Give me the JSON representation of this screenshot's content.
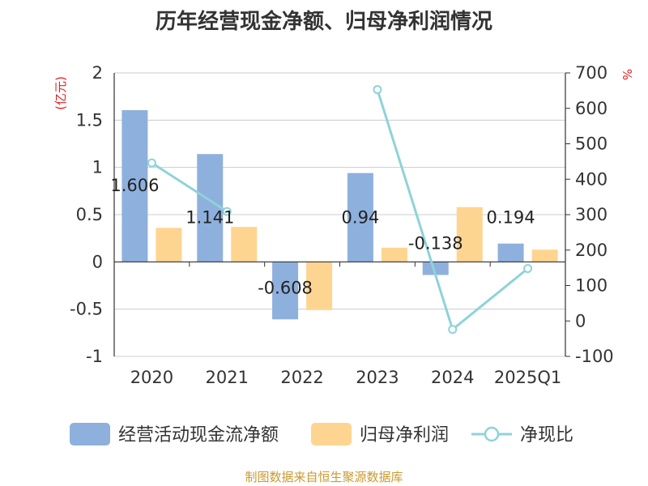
{
  "title": "历年经营现金净额、归母净利润情况",
  "source": "制图数据来自恒生聚源数据库",
  "colors": {
    "cash": "#8eb0dd",
    "profit": "#fed590",
    "ratio": "#8ed3d8",
    "unit": "#e02020"
  },
  "chart_data": {
    "type": "bar",
    "categories": [
      "2020",
      "2021",
      "2022",
      "2023",
      "2024",
      "2025Q1"
    ],
    "series": [
      {
        "name": "经营活动现金流净额",
        "type": "bar",
        "axis": "left",
        "values": [
          1.606,
          1.141,
          -0.608,
          0.94,
          -0.138,
          0.194
        ],
        "labels": [
          "1.606",
          "1.141",
          "-0.608",
          "0.94",
          "-0.138",
          "0.194"
        ]
      },
      {
        "name": "归母净利润",
        "type": "bar",
        "axis": "left",
        "values": [
          0.36,
          0.37,
          -0.51,
          0.15,
          0.58,
          0.13
        ]
      },
      {
        "name": "净现比",
        "type": "line",
        "axis": "right",
        "values": [
          446,
          309,
          null,
          653,
          -24,
          148
        ]
      }
    ],
    "left_axis": {
      "unit": "(亿元)",
      "ylim": [
        -1,
        2
      ],
      "ticks": [
        "2",
        "1.5",
        "1",
        "0.5",
        "0",
        "-0.5",
        "-1"
      ]
    },
    "right_axis": {
      "unit": "%",
      "ylim": [
        -100,
        700
      ],
      "ticks": [
        "700",
        "600",
        "500",
        "400",
        "300",
        "200",
        "100",
        "0",
        "-100"
      ]
    },
    "legend": [
      "经营活动现金流净额",
      "归母净利润",
      "净现比"
    ]
  }
}
